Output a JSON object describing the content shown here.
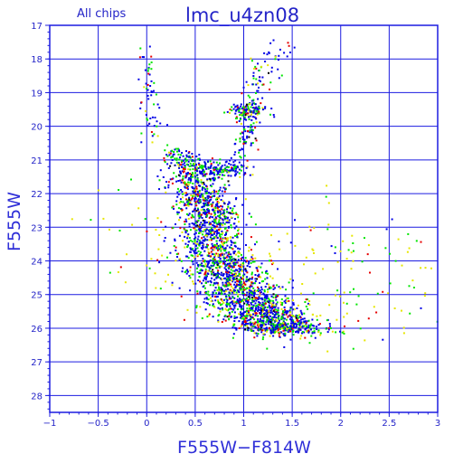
{
  "header": {
    "subtitle": "All chips",
    "title": "lmc_u4zn08"
  },
  "chart_data": {
    "type": "scatter",
    "title": "lmc_u4zn08",
    "subtitle": "All chips",
    "xlabel": "F555W−F814W",
    "ylabel": "F555W",
    "xlim": [
      -1,
      3
    ],
    "ylim": [
      28.5,
      17
    ],
    "y_inverted": true,
    "grid": true,
    "x_ticks": [
      -1,
      -0.5,
      0,
      0.5,
      1,
      1.5,
      2,
      2.5,
      3
    ],
    "x_tick_labels": [
      "−1",
      "−0.5",
      "0",
      "0.5",
      "1",
      "1.5",
      "2",
      "2.5",
      "3"
    ],
    "y_ticks": [
      17,
      18,
      19,
      20,
      21,
      22,
      23,
      24,
      25,
      26,
      27,
      28
    ],
    "y_tick_labels": [
      "17",
      "18",
      "19",
      "20",
      "21",
      "22",
      "23",
      "24",
      "25",
      "26",
      "27",
      "28"
    ],
    "colors": {
      "frame": "#1c1ce0",
      "grid": "#1c1ce0",
      "chip_colors": [
        "#0000e6",
        "#00e600",
        "#e60000",
        "#e6e600",
        "#000000"
      ]
    },
    "features": [
      {
        "name": "main sequence",
        "points": [
          [
            0.42,
            21.3
          ],
          [
            0.55,
            22.0
          ],
          [
            0.62,
            22.6
          ],
          [
            0.68,
            23.3
          ],
          [
            0.76,
            24.0
          ],
          [
            0.88,
            24.6
          ],
          [
            1.02,
            25.1
          ],
          [
            1.15,
            25.5
          ],
          [
            1.32,
            25.9
          ],
          [
            1.48,
            26.1
          ]
        ],
        "width": 0.14,
        "count": 2300
      },
      {
        "name": "subgiant branch",
        "points": [
          [
            0.2,
            20.7
          ],
          [
            0.42,
            21.1
          ],
          [
            0.7,
            21.35
          ],
          [
            0.9,
            21.25
          ]
        ],
        "width": 0.08,
        "count": 280
      },
      {
        "name": "red giant branch",
        "points": [
          [
            0.92,
            21.2
          ],
          [
            0.99,
            20.6
          ],
          [
            1.03,
            20.0
          ],
          [
            1.07,
            19.4
          ],
          [
            1.15,
            18.7
          ],
          [
            1.35,
            17.6
          ]
        ],
        "width": 0.05,
        "count": 180
      },
      {
        "name": "red clump",
        "points": [
          [
            0.95,
            19.55
          ],
          [
            1.08,
            19.55
          ]
        ],
        "width": 0.06,
        "count": 90
      },
      {
        "name": "blue plume",
        "points": [
          [
            0.02,
            17.6
          ],
          [
            0.02,
            18.8
          ],
          [
            0.05,
            19.8
          ],
          [
            0.1,
            20.5
          ]
        ],
        "width": 0.04,
        "count": 60
      },
      {
        "name": "faint field",
        "points": [
          [
            0.4,
            23.0
          ],
          [
            1.4,
            24.5
          ],
          [
            2.4,
            25.4
          ]
        ],
        "width": 0.45,
        "count": 260,
        "sparse": true
      }
    ]
  }
}
